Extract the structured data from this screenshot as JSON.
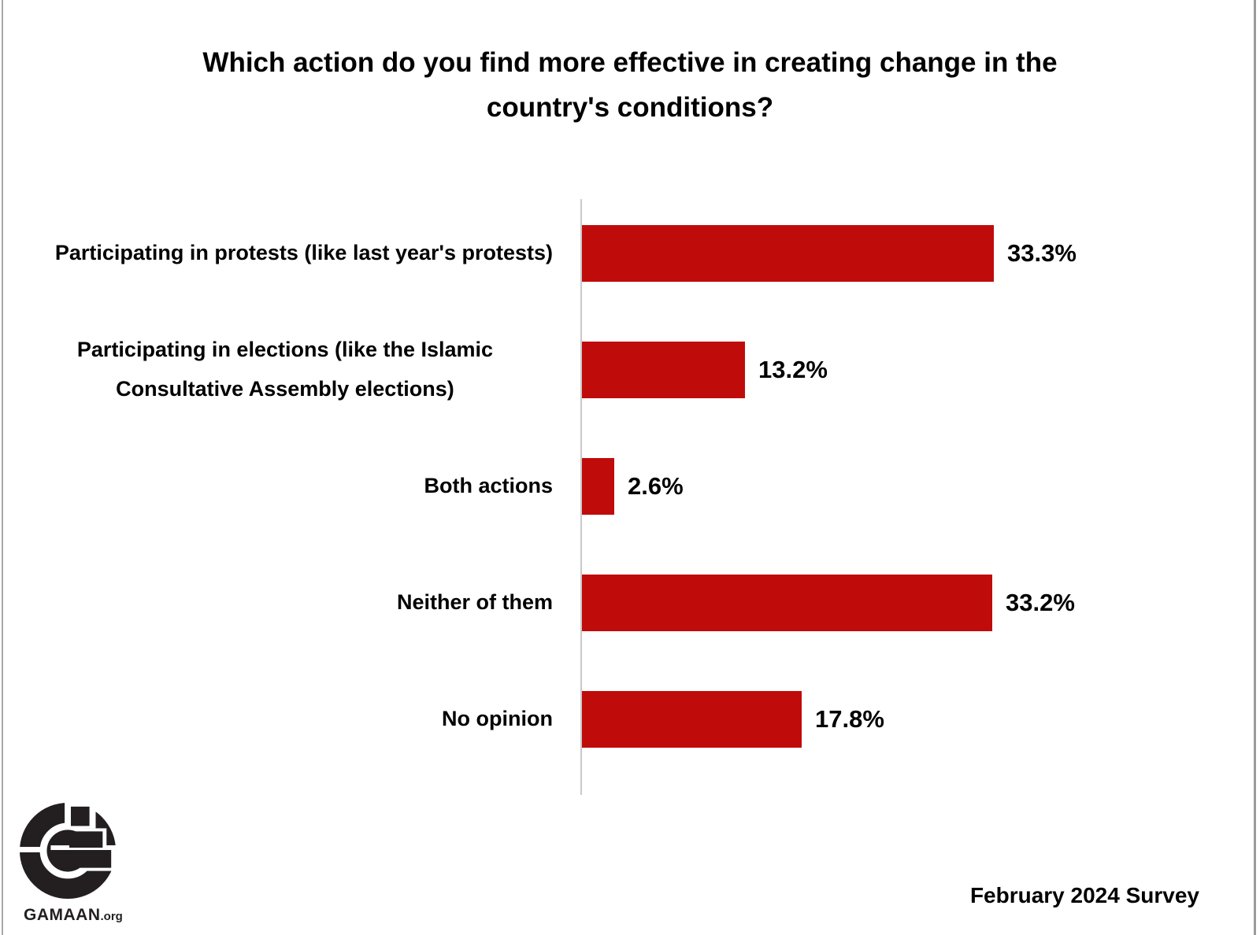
{
  "chart_data": {
    "type": "bar",
    "orientation": "horizontal",
    "title": "Which action do you find more effective in creating change in the country's conditions?",
    "categories": [
      "Participating in protests (like last year's protests)",
      "Participating in elections (like the Islamic Consultative Assembly elections)",
      "Both actions",
      "Neither of them",
      "No opinion"
    ],
    "values": [
      33.3,
      13.2,
      2.6,
      33.2,
      17.8
    ],
    "value_labels": [
      "33.3%",
      "13.2%",
      "2.6%",
      "33.2%",
      "17.8%"
    ],
    "bar_color": "#c00b0b",
    "text_color": "#000000",
    "axis_line_color": "#c9c9c9",
    "grid": false,
    "legend": false,
    "value_labels_position": "right-of-bar"
  },
  "footer": {
    "logo_name": "GAMAAN",
    "logo_suffix": ".org",
    "survey_note": "February 2024 Survey"
  }
}
